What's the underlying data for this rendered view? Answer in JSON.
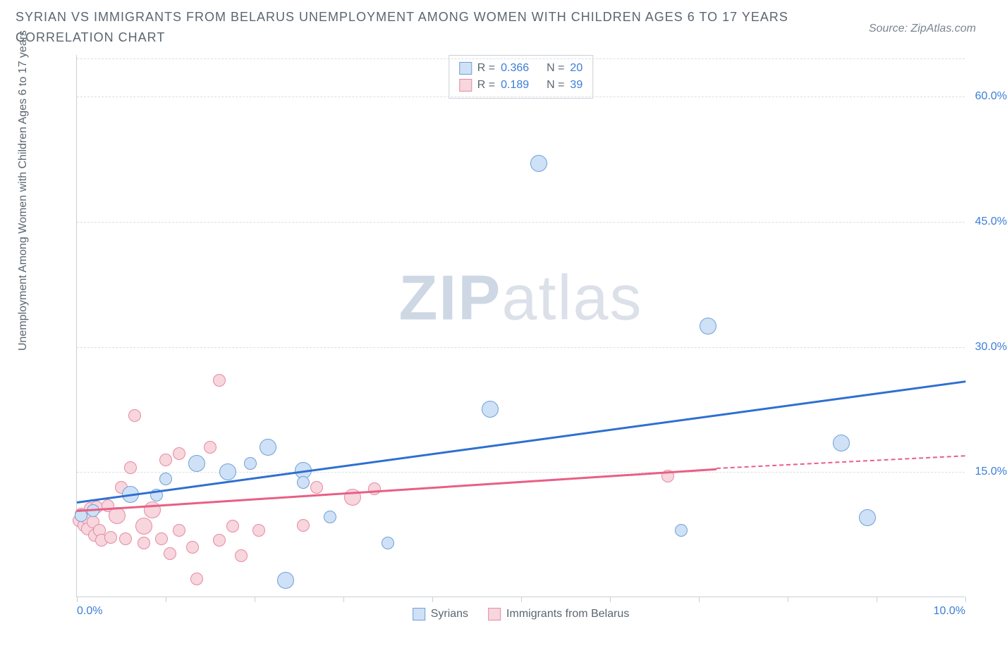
{
  "title": "SYRIAN VS IMMIGRANTS FROM BELARUS UNEMPLOYMENT AMONG WOMEN WITH CHILDREN AGES 6 TO 17 YEARS CORRELATION CHART",
  "source_label": "Source: ZipAtlas.com",
  "y_axis_label": "Unemployment Among Women with Children Ages 6 to 17 years",
  "watermark_bold": "ZIP",
  "watermark_light": "atlas",
  "chart": {
    "type": "scatter",
    "xlim": [
      0,
      10
    ],
    "ylim": [
      0,
      65
    ],
    "y_ticks": [
      15,
      30,
      45,
      60
    ],
    "y_tick_labels": [
      "15.0%",
      "30.0%",
      "45.0%",
      "60.0%"
    ],
    "x_ticks": [
      0,
      1,
      2,
      3,
      4,
      5,
      6,
      7,
      8,
      9,
      10
    ],
    "x_tick_labels": {
      "0": "0.0%",
      "10": "10.0%"
    },
    "background_color": "#ffffff",
    "grid_color": "#dadfe4",
    "axis_color": "#c9d0d6",
    "tick_label_color": "#3b7dd8",
    "point_radius_small": 9,
    "point_radius_large": 12,
    "series": [
      {
        "name": "Syrians",
        "fill": "#cfe1f6",
        "stroke": "#6f9fd8",
        "trend_color": "#2f6fd0",
        "legend_swatch_fill": "#cfe1f6",
        "legend_swatch_stroke": "#6f9fd8",
        "R": "0.366",
        "N": "20",
        "trend": {
          "x1": 0.0,
          "y1": 11.5,
          "x2": 10.0,
          "y2": 26.0
        },
        "points": [
          {
            "x": 0.05,
            "y": 9.8,
            "r": 9
          },
          {
            "x": 0.18,
            "y": 10.4,
            "r": 9
          },
          {
            "x": 0.6,
            "y": 12.3,
            "r": 12
          },
          {
            "x": 0.9,
            "y": 12.2,
            "r": 9
          },
          {
            "x": 1.0,
            "y": 14.2,
            "r": 9
          },
          {
            "x": 1.35,
            "y": 16.0,
            "r": 12
          },
          {
            "x": 1.7,
            "y": 15.0,
            "r": 12
          },
          {
            "x": 1.95,
            "y": 16.0,
            "r": 9
          },
          {
            "x": 2.15,
            "y": 18.0,
            "r": 12
          },
          {
            "x": 2.35,
            "y": 2.0,
            "r": 12
          },
          {
            "x": 2.55,
            "y": 15.2,
            "r": 12
          },
          {
            "x": 2.55,
            "y": 13.8,
            "r": 9
          },
          {
            "x": 2.85,
            "y": 9.6,
            "r": 9
          },
          {
            "x": 3.5,
            "y": 6.5,
            "r": 9
          },
          {
            "x": 4.65,
            "y": 22.5,
            "r": 12
          },
          {
            "x": 5.2,
            "y": 52.0,
            "r": 12
          },
          {
            "x": 6.8,
            "y": 8.0,
            "r": 9
          },
          {
            "x": 7.1,
            "y": 32.5,
            "r": 12
          },
          {
            "x": 8.6,
            "y": 18.5,
            "r": 12
          },
          {
            "x": 8.9,
            "y": 9.5,
            "r": 12
          }
        ]
      },
      {
        "name": "Immigrants from Belarus",
        "fill": "#f7d6de",
        "stroke": "#e68aa0",
        "trend_color": "#e85f86",
        "legend_swatch_fill": "#f7d6de",
        "legend_swatch_stroke": "#e68aa0",
        "R": "0.189",
        "N": "39",
        "trend": {
          "x1": 0.0,
          "y1": 10.5,
          "x2": 7.2,
          "y2": 15.5
        },
        "trend_dash": {
          "x1": 7.2,
          "y1": 15.5,
          "x2": 10.0,
          "y2": 17.0
        },
        "points": [
          {
            "x": 0.02,
            "y": 9.2,
            "r": 9
          },
          {
            "x": 0.05,
            "y": 10.0,
            "r": 9
          },
          {
            "x": 0.08,
            "y": 8.6,
            "r": 9
          },
          {
            "x": 0.1,
            "y": 9.5,
            "r": 9
          },
          {
            "x": 0.12,
            "y": 8.2,
            "r": 9
          },
          {
            "x": 0.15,
            "y": 10.6,
            "r": 9
          },
          {
            "x": 0.18,
            "y": 9.0,
            "r": 9
          },
          {
            "x": 0.2,
            "y": 7.4,
            "r": 9
          },
          {
            "x": 0.22,
            "y": 10.8,
            "r": 9
          },
          {
            "x": 0.25,
            "y": 8.0,
            "r": 9
          },
          {
            "x": 0.28,
            "y": 6.8,
            "r": 9
          },
          {
            "x": 0.35,
            "y": 11.0,
            "r": 9
          },
          {
            "x": 0.38,
            "y": 7.2,
            "r": 9
          },
          {
            "x": 0.45,
            "y": 9.8,
            "r": 12
          },
          {
            "x": 0.5,
            "y": 13.2,
            "r": 9
          },
          {
            "x": 0.55,
            "y": 7.0,
            "r": 9
          },
          {
            "x": 0.6,
            "y": 15.5,
            "r": 9
          },
          {
            "x": 0.65,
            "y": 21.8,
            "r": 9
          },
          {
            "x": 0.75,
            "y": 8.5,
            "r": 12
          },
          {
            "x": 0.75,
            "y": 6.5,
            "r": 9
          },
          {
            "x": 0.85,
            "y": 10.5,
            "r": 12
          },
          {
            "x": 0.95,
            "y": 7.0,
            "r": 9
          },
          {
            "x": 1.0,
            "y": 16.5,
            "r": 9
          },
          {
            "x": 1.05,
            "y": 5.2,
            "r": 9
          },
          {
            "x": 1.15,
            "y": 8.0,
            "r": 9
          },
          {
            "x": 1.15,
            "y": 17.2,
            "r": 9
          },
          {
            "x": 1.3,
            "y": 6.0,
            "r": 9
          },
          {
            "x": 1.35,
            "y": 2.2,
            "r": 9
          },
          {
            "x": 1.5,
            "y": 18.0,
            "r": 9
          },
          {
            "x": 1.6,
            "y": 6.8,
            "r": 9
          },
          {
            "x": 1.6,
            "y": 26.0,
            "r": 9
          },
          {
            "x": 1.75,
            "y": 8.5,
            "r": 9
          },
          {
            "x": 1.85,
            "y": 5.0,
            "r": 9
          },
          {
            "x": 2.05,
            "y": 8.0,
            "r": 9
          },
          {
            "x": 2.55,
            "y": 8.6,
            "r": 9
          },
          {
            "x": 2.7,
            "y": 13.2,
            "r": 9
          },
          {
            "x": 3.1,
            "y": 12.0,
            "r": 12
          },
          {
            "x": 3.35,
            "y": 13.0,
            "r": 9
          },
          {
            "x": 6.65,
            "y": 14.5,
            "r": 9
          }
        ]
      }
    ]
  },
  "legend_top_labels": {
    "R": "R =",
    "N": "N ="
  }
}
